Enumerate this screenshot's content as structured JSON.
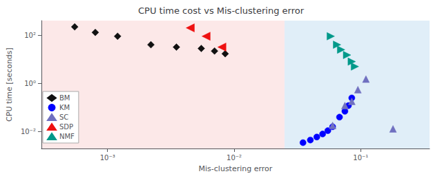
{
  "chart_data": {
    "type": "scatter",
    "title": "CPU time cost vs Mis-clustering error",
    "xlabel": "Mis-clustering error",
    "ylabel": "CPU time [seconds]",
    "log": true,
    "xlim": [
      0.0003,
      0.35
    ],
    "ylim": [
      0.002,
      400
    ],
    "xticks": [
      {
        "value": 0.001,
        "label": "10⁻³"
      },
      {
        "value": 0.01,
        "label": "10⁻²"
      },
      {
        "value": 0.1,
        "label": "10⁻¹"
      }
    ],
    "yticks": [
      {
        "value": 0.01,
        "label": "10⁻²"
      },
      {
        "value": 1.0,
        "label": "10⁰"
      },
      {
        "value": 100.0,
        "label": "10²"
      }
    ],
    "grid": true,
    "legend": "lower left",
    "bands": [
      {
        "xlim": [
          0.0003,
          0.025
        ],
        "color": "#fce8e8"
      },
      {
        "xlim": [
          0.025,
          0.35
        ],
        "color": "#e0eef8"
      }
    ],
    "series": [
      {
        "name": "BM",
        "color": "#111111",
        "marker": "diamond",
        "x": [
          0.00055,
          0.0008,
          0.0012,
          0.0022,
          0.0035,
          0.0055,
          0.007,
          0.0085
        ],
        "y": [
          220,
          130,
          90,
          40,
          32,
          28,
          22,
          17
        ]
      },
      {
        "name": "KM",
        "color": "#0000ff",
        "marker": "circle",
        "x": [
          0.035,
          0.04,
          0.045,
          0.05,
          0.055,
          0.06,
          0.068,
          0.075,
          0.08,
          0.085
        ],
        "y": [
          0.0035,
          0.0045,
          0.006,
          0.008,
          0.011,
          0.016,
          0.04,
          0.07,
          0.12,
          0.25
        ]
      },
      {
        "name": "SC",
        "color": "#7070c0",
        "marker": "triangle-up",
        "x": [
          0.06,
          0.075,
          0.085,
          0.095,
          0.11,
          0.18
        ],
        "y": [
          0.018,
          0.12,
          0.18,
          0.55,
          1.5,
          0.013
        ]
      },
      {
        "name": "SDP",
        "color": "#ee1111",
        "marker": "triangle-left",
        "x": [
          0.0045,
          0.006,
          0.008
        ],
        "y": [
          200,
          90,
          32
        ]
      },
      {
        "name": "NMF",
        "color": "#00998a",
        "marker": "triangle-right",
        "x": [
          0.058,
          0.065,
          0.07,
          0.078,
          0.085,
          0.09
        ],
        "y": [
          90,
          40,
          25,
          15,
          8,
          5
        ]
      }
    ]
  }
}
